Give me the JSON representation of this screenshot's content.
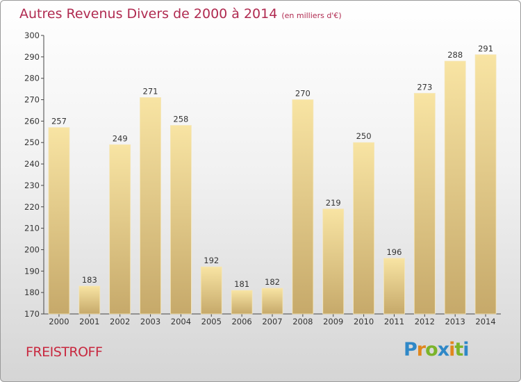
{
  "title": "Autres Revenus Divers de 2000 à 2014",
  "unit": "(en milliers d'€)",
  "city": "FREISTROFF",
  "logo": "Proxiti",
  "colors": {
    "title": "#b02a50",
    "bar_light": "#f7e3a2",
    "bar_dark": "#c9ad6c"
  },
  "chart_data": {
    "type": "bar",
    "title": "Autres Revenus Divers de 2000 à 2014",
    "categories": [
      "2000",
      "2001",
      "2002",
      "2003",
      "2004",
      "2005",
      "2006",
      "2007",
      "2008",
      "2009",
      "2010",
      "2011",
      "2012",
      "2013",
      "2014"
    ],
    "values": [
      257,
      183,
      249,
      271,
      258,
      192,
      181,
      182,
      270,
      219,
      250,
      196,
      273,
      288,
      291
    ],
    "yticks": [
      170,
      180,
      190,
      200,
      210,
      220,
      230,
      240,
      250,
      260,
      270,
      280,
      290,
      300
    ],
    "ylim": [
      170,
      300
    ],
    "xlabel": "",
    "ylabel": "",
    "grid": false,
    "legend": "none"
  }
}
